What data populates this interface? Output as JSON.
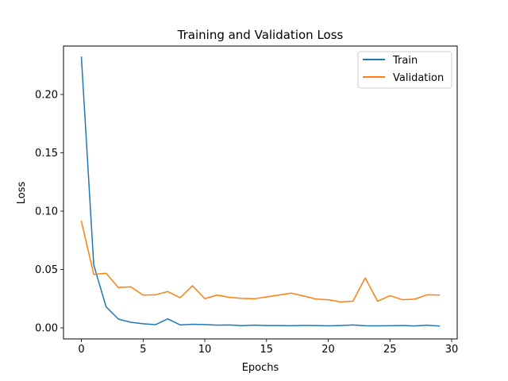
{
  "chart_data": {
    "type": "line",
    "title": "Training and Validation Loss",
    "xlabel": "Epochs",
    "ylabel": "Loss",
    "xlim": [
      -1.45,
      30.45
    ],
    "ylim": [
      -0.0095,
      0.2415
    ],
    "x_ticks": [
      0,
      5,
      10,
      15,
      20,
      25,
      30
    ],
    "x_tick_labels": [
      "0",
      "5",
      "10",
      "15",
      "20",
      "25",
      "30"
    ],
    "y_ticks": [
      0.0,
      0.05,
      0.1,
      0.15,
      0.2
    ],
    "y_tick_labels": [
      "0.00",
      "0.05",
      "0.10",
      "0.15",
      "0.20"
    ],
    "grid": false,
    "legend_position": "top-right",
    "x": [
      0,
      1,
      2,
      3,
      4,
      5,
      6,
      7,
      8,
      9,
      10,
      11,
      12,
      13,
      14,
      15,
      16,
      17,
      18,
      19,
      20,
      21,
      22,
      23,
      24,
      25,
      26,
      27,
      28,
      29
    ],
    "series": [
      {
        "name": "Train",
        "color": "#1f77b4",
        "values": [
          0.232,
          0.054,
          0.018,
          0.0075,
          0.0048,
          0.0035,
          0.0027,
          0.0077,
          0.0025,
          0.0031,
          0.0028,
          0.0023,
          0.0025,
          0.0019,
          0.0023,
          0.002,
          0.002,
          0.0018,
          0.0021,
          0.002,
          0.0017,
          0.002,
          0.0025,
          0.0018,
          0.0017,
          0.0018,
          0.002,
          0.0016,
          0.0022,
          0.0016
        ]
      },
      {
        "name": "Validation",
        "color": "#ff7f0e",
        "values": [
          0.0912,
          0.0458,
          0.0468,
          0.0345,
          0.0351,
          0.0281,
          0.0283,
          0.0311,
          0.0258,
          0.0361,
          0.025,
          0.0281,
          0.0261,
          0.0253,
          0.0249,
          0.0265,
          0.0281,
          0.0298,
          0.0273,
          0.0247,
          0.0241,
          0.0222,
          0.0228,
          0.0428,
          0.0228,
          0.0276,
          0.0241,
          0.0246,
          0.0283,
          0.0281
        ]
      }
    ]
  }
}
